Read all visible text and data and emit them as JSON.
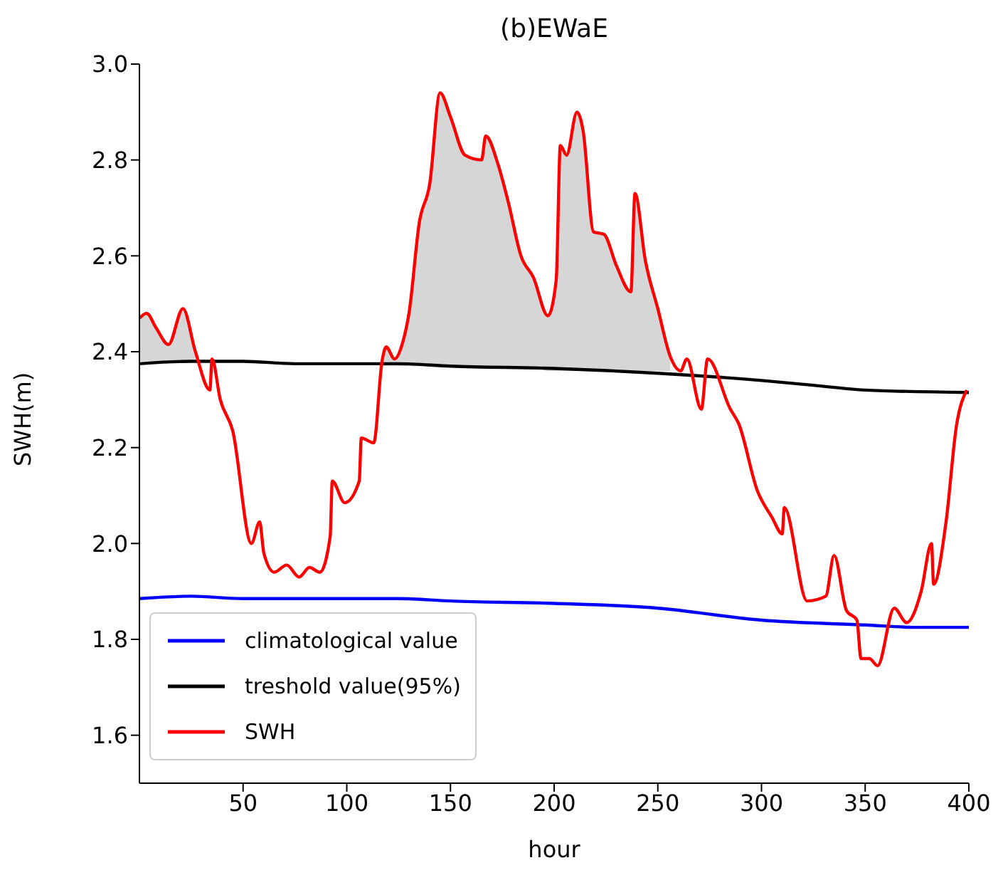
{
  "chart_data": {
    "type": "line",
    "title": "(b)EWaE",
    "xlabel": "hour",
    "ylabel": "SWH(m)",
    "xlim": [
      0,
      400
    ],
    "xticks": [
      50,
      100,
      150,
      200,
      250,
      300,
      350,
      400
    ],
    "ylim": [
      1.5,
      3.0
    ],
    "yticks": [
      1.6,
      1.8,
      {
        "value": 2.0,
        "label": "2.0"
      },
      2.2,
      2.4,
      2.6,
      2.8,
      {
        "value": 3.0,
        "label": "3.0"
      }
    ],
    "legend": "bottom left",
    "marker": "none",
    "line_style": "solid",
    "series": [
      {
        "name": "climatological value",
        "color": "#0000ff",
        "x": [
          0,
          25,
          50,
          100,
          125,
          150,
          200,
          250,
          300,
          350,
          375,
          400
        ],
        "values": [
          1.885,
          1.89,
          1.885,
          1.885,
          1.885,
          1.88,
          1.875,
          1.865,
          1.84,
          1.83,
          1.825,
          1.825
        ]
      },
      {
        "name": "treshold value(95%)",
        "color": "#000000",
        "x": [
          0,
          25,
          50,
          75,
          100,
          125,
          150,
          200,
          250,
          300,
          325,
          350,
          400
        ],
        "values": [
          2.375,
          2.38,
          2.38,
          2.375,
          2.375,
          2.375,
          2.37,
          2.365,
          2.355,
          2.34,
          2.33,
          2.32,
          2.315
        ]
      },
      {
        "name": "SWH",
        "color": "#ff0000",
        "x": [
          0,
          3.5,
          8,
          14,
          21,
          27,
          34,
          35,
          39,
          45,
          54,
          58,
          60,
          65,
          71,
          77,
          82,
          87,
          92,
          93,
          99,
          106,
          107,
          113,
          117,
          119,
          123,
          127,
          130,
          135,
          140,
          145,
          150,
          157,
          165,
          167,
          173,
          178,
          184,
          190,
          197,
          201,
          203,
          206,
          211,
          214,
          219,
          224,
          230,
          237,
          239,
          244,
          250,
          256,
          261,
          264,
          271,
          274,
          285,
          289,
          298,
          305,
          310,
          311,
          322,
          331,
          335,
          341,
          346,
          348,
          352,
          356,
          364,
          370,
          377,
          382,
          383,
          389,
          394,
          399
        ],
        "values": [
          2.47,
          2.48,
          2.45,
          2.415,
          2.49,
          2.4,
          2.32,
          2.385,
          2.3,
          2.235,
          2.0,
          2.045,
          1.98,
          1.94,
          1.955,
          1.93,
          1.95,
          1.94,
          2.015,
          2.13,
          2.085,
          2.13,
          2.22,
          2.21,
          2.38,
          2.41,
          2.385,
          2.42,
          2.48,
          2.67,
          2.75,
          2.94,
          2.89,
          2.81,
          2.8,
          2.85,
          2.79,
          2.71,
          2.6,
          2.555,
          2.475,
          2.55,
          2.83,
          2.81,
          2.9,
          2.86,
          2.65,
          2.645,
          2.58,
          2.525,
          2.73,
          2.59,
          2.49,
          2.39,
          2.36,
          2.385,
          2.28,
          2.385,
          2.28,
          2.25,
          2.11,
          2.055,
          2.02,
          2.075,
          1.88,
          1.89,
          1.975,
          1.86,
          1.84,
          1.76,
          1.76,
          1.745,
          1.865,
          1.835,
          1.9,
          2.0,
          1.915,
          2.045,
          2.245,
          2.32
        ],
        "lower": [
          2.38,
          2.38,
          2.38,
          2.38,
          2.38,
          2.38,
          null,
          null,
          null,
          null,
          null,
          null,
          null,
          null,
          null,
          null,
          null,
          null,
          null,
          null,
          null,
          null,
          null,
          null,
          2.37,
          2.37,
          2.37,
          2.37,
          2.37,
          2.37,
          2.37,
          2.37,
          2.37,
          2.37,
          2.37,
          2.37,
          2.37,
          2.37,
          2.37,
          2.37,
          2.36,
          2.36,
          2.36,
          2.36,
          2.36,
          2.36,
          2.36,
          2.36,
          2.36,
          2.36,
          2.36,
          2.36,
          2.36,
          2.36,
          null,
          null,
          null,
          null,
          null,
          null,
          null,
          null,
          null,
          null,
          null,
          null,
          null,
          null,
          null,
          null,
          null,
          null,
          null,
          null,
          null,
          null,
          null,
          null,
          null,
          null
        ],
        "upper": [
          2.47,
          2.48,
          2.45,
          2.415,
          2.49,
          2.4,
          null,
          null,
          null,
          null,
          null,
          null,
          null,
          null,
          null,
          null,
          null,
          null,
          null,
          null,
          null,
          null,
          null,
          null,
          2.38,
          2.41,
          2.385,
          2.42,
          2.48,
          2.67,
          2.75,
          2.94,
          2.89,
          2.81,
          2.8,
          2.85,
          2.79,
          2.71,
          2.6,
          2.555,
          2.475,
          2.55,
          2.83,
          2.81,
          2.9,
          2.86,
          2.65,
          2.645,
          2.58,
          2.525,
          2.73,
          2.59,
          2.49,
          2.39,
          null,
          null,
          null,
          null,
          null,
          null,
          null,
          null,
          null,
          null,
          null,
          null,
          null,
          null,
          null,
          null,
          null,
          null,
          null,
          null,
          null,
          null,
          null,
          null,
          null,
          null
        ]
      }
    ]
  }
}
